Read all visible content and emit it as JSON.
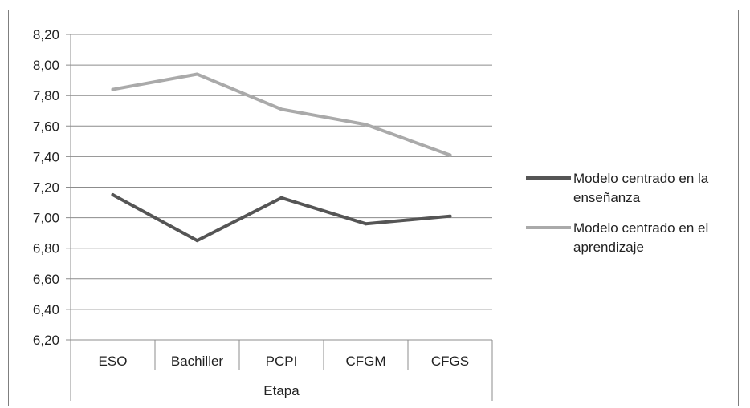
{
  "chart_data": {
    "type": "line",
    "categories": [
      "ESO",
      "Bachiller",
      "PCPI",
      "CFGM",
      "CFGS"
    ],
    "series": [
      {
        "name": "Modelo centrado en la enseñanza",
        "values": [
          7.15,
          6.85,
          7.13,
          6.96,
          7.01
        ],
        "color": "#555555"
      },
      {
        "name": "Modelo centrado en el aprendizaje",
        "values": [
          7.84,
          7.94,
          7.71,
          7.61,
          7.41
        ],
        "color": "#aaaaaa"
      }
    ],
    "xlabel": "Etapa",
    "ylabel": "",
    "ylim": [
      6.2,
      8.2
    ],
    "yticks": [
      "6,20",
      "6,40",
      "6,60",
      "6,80",
      "7,00",
      "7,20",
      "7,40",
      "7,60",
      "7,80",
      "8,00",
      "8,20"
    ],
    "grid": true,
    "legend_position": "right",
    "legend_lines": [
      [
        "Modelo centrado en la",
        "enseñanza"
      ],
      [
        "Modelo centrado en el",
        "aprendizaje"
      ]
    ]
  }
}
